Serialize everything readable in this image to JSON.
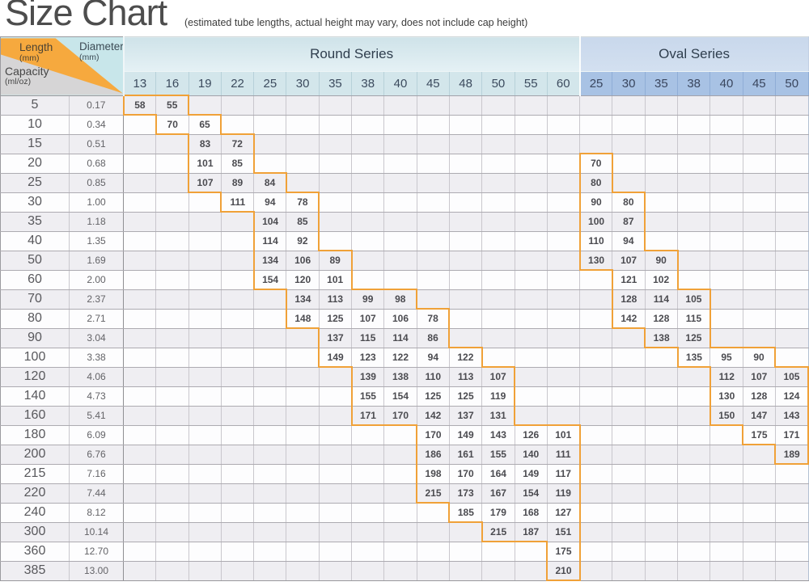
{
  "title": "Size Chart",
  "subtitle": "(estimated tube lengths, actual height may vary, does not include cap height)",
  "corner": {
    "length_label": "Length",
    "length_unit": "(mm)",
    "diameter_label": "Diameter",
    "diameter_unit": "(mm)",
    "capacity_label": "Capacity",
    "capacity_unit": "(ml/oz)"
  },
  "series": {
    "round": "Round Series",
    "oval": "Oval Series"
  },
  "colors": {
    "staircase_orange": "#F0A138",
    "corner_wedge_orange": "#F6A93E",
    "corner_teal": "#C8E6EA",
    "corner_gray": "#D6D5D6",
    "round_header_bg": "#D3E6EB",
    "oval_header_bg": "#A8C2E4",
    "row_shade": "#EFEEF2"
  },
  "chart_data": {
    "type": "table",
    "title": "Size Chart",
    "subtitle": "(estimated tube lengths, actual height may vary, does not include cap height)",
    "round_columns": [
      13,
      16,
      19,
      22,
      25,
      30,
      35,
      38,
      40,
      45,
      48,
      50,
      55,
      60
    ],
    "oval_columns": [
      25,
      30,
      35,
      38,
      40,
      45,
      50
    ],
    "rows": [
      {
        "ml": "5",
        "oz": "0.17",
        "round": [
          58,
          55,
          null,
          null,
          null,
          null,
          null,
          null,
          null,
          null,
          null,
          null,
          null,
          null
        ],
        "oval": [
          null,
          null,
          null,
          null,
          null,
          null,
          null
        ]
      },
      {
        "ml": "10",
        "oz": "0.34",
        "round": [
          null,
          70,
          65,
          null,
          null,
          null,
          null,
          null,
          null,
          null,
          null,
          null,
          null,
          null
        ],
        "oval": [
          null,
          null,
          null,
          null,
          null,
          null,
          null
        ]
      },
      {
        "ml": "15",
        "oz": "0.51",
        "round": [
          null,
          null,
          83,
          72,
          null,
          null,
          null,
          null,
          null,
          null,
          null,
          null,
          null,
          null
        ],
        "oval": [
          null,
          null,
          null,
          null,
          null,
          null,
          null
        ]
      },
      {
        "ml": "20",
        "oz": "0.68",
        "round": [
          null,
          null,
          101,
          85,
          null,
          null,
          null,
          null,
          null,
          null,
          null,
          null,
          null,
          null
        ],
        "oval": [
          70,
          null,
          null,
          null,
          null,
          null,
          null
        ]
      },
      {
        "ml": "25",
        "oz": "0.85",
        "round": [
          null,
          null,
          107,
          89,
          84,
          null,
          null,
          null,
          null,
          null,
          null,
          null,
          null,
          null
        ],
        "oval": [
          80,
          null,
          null,
          null,
          null,
          null,
          null
        ]
      },
      {
        "ml": "30",
        "oz": "1.00",
        "round": [
          null,
          null,
          null,
          111,
          94,
          78,
          null,
          null,
          null,
          null,
          null,
          null,
          null,
          null
        ],
        "oval": [
          90,
          80,
          null,
          null,
          null,
          null,
          null
        ]
      },
      {
        "ml": "35",
        "oz": "1.18",
        "round": [
          null,
          null,
          null,
          null,
          104,
          85,
          null,
          null,
          null,
          null,
          null,
          null,
          null,
          null
        ],
        "oval": [
          100,
          87,
          null,
          null,
          null,
          null,
          null
        ]
      },
      {
        "ml": "40",
        "oz": "1.35",
        "round": [
          null,
          null,
          null,
          null,
          114,
          92,
          null,
          null,
          null,
          null,
          null,
          null,
          null,
          null
        ],
        "oval": [
          110,
          94,
          null,
          null,
          null,
          null,
          null
        ]
      },
      {
        "ml": "50",
        "oz": "1.69",
        "round": [
          null,
          null,
          null,
          null,
          134,
          106,
          89,
          null,
          null,
          null,
          null,
          null,
          null,
          null
        ],
        "oval": [
          130,
          107,
          90,
          null,
          null,
          null,
          null
        ]
      },
      {
        "ml": "60",
        "oz": "2.00",
        "round": [
          null,
          null,
          null,
          null,
          154,
          120,
          101,
          null,
          null,
          null,
          null,
          null,
          null,
          null
        ],
        "oval": [
          null,
          121,
          102,
          null,
          null,
          null,
          null
        ]
      },
      {
        "ml": "70",
        "oz": "2.37",
        "round": [
          null,
          null,
          null,
          null,
          null,
          134,
          113,
          99,
          98,
          null,
          null,
          null,
          null,
          null
        ],
        "oval": [
          null,
          128,
          114,
          105,
          null,
          null,
          null
        ]
      },
      {
        "ml": "80",
        "oz": "2.71",
        "round": [
          null,
          null,
          null,
          null,
          null,
          148,
          125,
          107,
          106,
          78,
          null,
          null,
          null,
          null
        ],
        "oval": [
          null,
          142,
          128,
          115,
          null,
          null,
          null
        ]
      },
      {
        "ml": "90",
        "oz": "3.04",
        "round": [
          null,
          null,
          null,
          null,
          null,
          null,
          137,
          115,
          114,
          86,
          null,
          null,
          null,
          null
        ],
        "oval": [
          null,
          null,
          138,
          125,
          null,
          null,
          null
        ]
      },
      {
        "ml": "100",
        "oz": "3.38",
        "round": [
          null,
          null,
          null,
          null,
          null,
          null,
          149,
          123,
          122,
          94,
          122,
          null,
          null,
          null
        ],
        "oval": [
          null,
          null,
          null,
          135,
          95,
          90,
          null
        ]
      },
      {
        "ml": "120",
        "oz": "4.06",
        "round": [
          null,
          null,
          null,
          null,
          null,
          null,
          null,
          139,
          138,
          110,
          113,
          107,
          null,
          null
        ],
        "oval": [
          null,
          null,
          null,
          null,
          112,
          107,
          105
        ]
      },
      {
        "ml": "140",
        "oz": "4.73",
        "round": [
          null,
          null,
          null,
          null,
          null,
          null,
          null,
          155,
          154,
          125,
          125,
          119,
          null,
          null
        ],
        "oval": [
          null,
          null,
          null,
          null,
          130,
          128,
          124
        ]
      },
      {
        "ml": "160",
        "oz": "5.41",
        "round": [
          null,
          null,
          null,
          null,
          null,
          null,
          null,
          171,
          170,
          142,
          137,
          131,
          null,
          null
        ],
        "oval": [
          null,
          null,
          null,
          null,
          150,
          147,
          143
        ]
      },
      {
        "ml": "180",
        "oz": "6.09",
        "round": [
          null,
          null,
          null,
          null,
          null,
          null,
          null,
          null,
          null,
          170,
          149,
          143,
          126,
          101
        ],
        "oval": [
          null,
          null,
          null,
          null,
          null,
          175,
          171
        ]
      },
      {
        "ml": "200",
        "oz": "6.76",
        "round": [
          null,
          null,
          null,
          null,
          null,
          null,
          null,
          null,
          null,
          186,
          161,
          155,
          140,
          111
        ],
        "oval": [
          null,
          null,
          null,
          null,
          null,
          null,
          189
        ]
      },
      {
        "ml": "215",
        "oz": "7.16",
        "round": [
          null,
          null,
          null,
          null,
          null,
          null,
          null,
          null,
          null,
          198,
          170,
          164,
          149,
          117
        ],
        "oval": [
          null,
          null,
          null,
          null,
          null,
          null,
          null
        ]
      },
      {
        "ml": "220",
        "oz": "7.44",
        "round": [
          null,
          null,
          null,
          null,
          null,
          null,
          null,
          null,
          null,
          215,
          173,
          167,
          154,
          119
        ],
        "oval": [
          null,
          null,
          null,
          null,
          null,
          null,
          null
        ]
      },
      {
        "ml": "240",
        "oz": "8.12",
        "round": [
          null,
          null,
          null,
          null,
          null,
          null,
          null,
          null,
          null,
          null,
          185,
          179,
          168,
          127
        ],
        "oval": [
          null,
          null,
          null,
          null,
          null,
          null,
          null
        ]
      },
      {
        "ml": "300",
        "oz": "10.14",
        "round": [
          null,
          null,
          null,
          null,
          null,
          null,
          null,
          null,
          null,
          null,
          null,
          215,
          187,
          151
        ],
        "oval": [
          null,
          null,
          null,
          null,
          null,
          null,
          null
        ]
      },
      {
        "ml": "360",
        "oz": "12.70",
        "round": [
          null,
          null,
          null,
          null,
          null,
          null,
          null,
          null,
          null,
          null,
          null,
          null,
          null,
          175
        ],
        "oval": [
          null,
          null,
          null,
          null,
          null,
          null,
          null
        ]
      },
      {
        "ml": "385",
        "oz": "13.00",
        "round": [
          null,
          null,
          null,
          null,
          null,
          null,
          null,
          null,
          null,
          null,
          null,
          null,
          null,
          210
        ],
        "oval": [
          null,
          null,
          null,
          null,
          null,
          null,
          null
        ]
      }
    ]
  }
}
